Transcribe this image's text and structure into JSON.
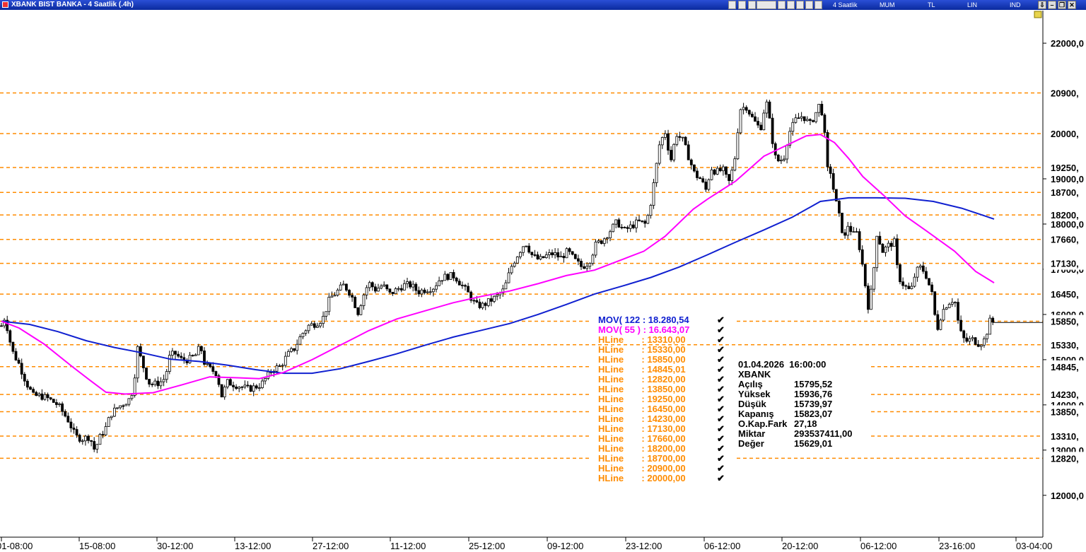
{
  "window": {
    "title": "XBANK BIST BANKA - 4 Saatlik (.4h)",
    "toolbar_labels": [
      "4 Saatlik",
      "MUM",
      "TL",
      "LIN",
      "IND"
    ]
  },
  "chart_data": {
    "type": "candlestick",
    "ylim": [
      11700,
      22400
    ],
    "y_ticks": [
      {
        "value": 22000,
        "label": "22000,0"
      },
      {
        "value": 19000,
        "label": "19000,0"
      },
      {
        "value": 18000,
        "label": "18000,0"
      },
      {
        "value": 17000,
        "label": "17000,0"
      },
      {
        "value": 16000,
        "label": "16000,0"
      },
      {
        "value": 15000,
        "label": "15000,0"
      },
      {
        "value": 14000,
        "label": "14000,0"
      },
      {
        "value": 13000,
        "label": "13000,0"
      },
      {
        "value": 12000,
        "label": "12000,0"
      }
    ],
    "x_ticks": [
      "01-08:00",
      "15-08:00",
      "30-12:00",
      "13-12:00",
      "27-12:00",
      "11-12:00",
      "25-12:00",
      "09-12:00",
      "23-12:00",
      "06-12:00",
      "20-12:00",
      "06-12:00",
      "23-16:00",
      "03-04:00"
    ],
    "hlines": [
      {
        "value": 20900,
        "label": "20900,",
        "style": "long"
      },
      {
        "value": 20000,
        "label": "20000,",
        "style": "long"
      },
      {
        "value": 19250,
        "label": "19250,",
        "style": "long"
      },
      {
        "value": 18700,
        "label": "18700,",
        "style": "long"
      },
      {
        "value": 18200,
        "label": "18200,",
        "style": "long"
      },
      {
        "value": 17660,
        "label": "17660,",
        "style": "long"
      },
      {
        "value": 17130,
        "label": "17130,",
        "style": "long"
      },
      {
        "value": 16450,
        "label": "16450,",
        "style": "long"
      },
      {
        "value": 15850,
        "label": "15850,",
        "style": "long"
      },
      {
        "value": 15330,
        "label": "15330,",
        "style": "long"
      },
      {
        "value": 14845.01,
        "label": "14845,",
        "style": "split"
      },
      {
        "value": 14230,
        "label": "14230,",
        "style": "split"
      },
      {
        "value": 13850,
        "label": "13850,",
        "style": "split"
      },
      {
        "value": 13310,
        "label": "13310,",
        "style": "split"
      },
      {
        "value": 12820,
        "label": "12820,",
        "style": "long"
      }
    ],
    "last_price_line": 15823.07,
    "legend": [
      {
        "name": "MOV( 122 : 18.280,54",
        "color": "#1020d0"
      },
      {
        "name": "MOV( 55 ) : 16.643,07",
        "color": "#ff00ff"
      },
      {
        "name": "HLine       : 13310,00",
        "color": "#ff8c00"
      },
      {
        "name": "HLine       : 15330,00",
        "color": "#ff8c00"
      },
      {
        "name": "HLine       : 15850,00",
        "color": "#ff8c00"
      },
      {
        "name": "HLine       : 14845,01",
        "color": "#ff8c00"
      },
      {
        "name": "HLine       : 12820,00",
        "color": "#ff8c00"
      },
      {
        "name": "HLine       : 13850,00",
        "color": "#ff8c00"
      },
      {
        "name": "HLine       : 19250,00",
        "color": "#ff8c00"
      },
      {
        "name": "HLine       : 16450,00",
        "color": "#ff8c00"
      },
      {
        "name": "HLine       : 14230,00",
        "color": "#ff8c00"
      },
      {
        "name": "HLine       : 17130,00",
        "color": "#ff8c00"
      },
      {
        "name": "HLine       : 17660,00",
        "color": "#ff8c00"
      },
      {
        "name": "HLine       : 18200,00",
        "color": "#ff8c00"
      },
      {
        "name": "HLine       : 18700,00",
        "color": "#ff8c00"
      },
      {
        "name": "HLine       : 20900,00",
        "color": "#ff8c00"
      },
      {
        "name": "HLine       : 20000,00",
        "color": "#ff8c00"
      }
    ],
    "info_panel": {
      "datetime": "01.04.2026  16:00:00",
      "symbol": "XBANK",
      "rows": [
        {
          "label": "Açılış",
          "value": "15795,52"
        },
        {
          "label": "Yüksek",
          "value": "15936,76"
        },
        {
          "label": "Düşük",
          "value": "15739,97"
        },
        {
          "label": "Kapanış",
          "value": "15823,07"
        },
        {
          "label": "O.Kap.Fark",
          "value": "27,18"
        },
        {
          "label": "Miktar",
          "value": "293537411,00"
        },
        {
          "label": "Değer",
          "value": "15629,01"
        }
      ]
    },
    "price_path": [
      [
        0,
        15750
      ],
      [
        5,
        15950
      ],
      [
        15,
        15200
      ],
      [
        25,
        14900
      ],
      [
        35,
        14500
      ],
      [
        45,
        14200
      ],
      [
        55,
        14200
      ],
      [
        65,
        14150
      ],
      [
        80,
        14000
      ],
      [
        95,
        13650
      ],
      [
        105,
        13300
      ],
      [
        115,
        13250
      ],
      [
        125,
        13300
      ],
      [
        132,
        13000
      ],
      [
        140,
        13300
      ],
      [
        148,
        13500
      ],
      [
        155,
        13800
      ],
      [
        165,
        13950
      ],
      [
        175,
        14050
      ],
      [
        183,
        14150
      ],
      [
        188,
        14500
      ],
      [
        192,
        15300
      ],
      [
        200,
        14900
      ],
      [
        208,
        14500
      ],
      [
        215,
        14450
      ],
      [
        225,
        14500
      ],
      [
        232,
        14600
      ],
      [
        238,
        15050
      ],
      [
        245,
        15150
      ],
      [
        255,
        15000
      ],
      [
        265,
        15000
      ],
      [
        275,
        15100
      ],
      [
        282,
        15300
      ],
      [
        288,
        14900
      ],
      [
        295,
        14800
      ],
      [
        305,
        14700
      ],
      [
        312,
        14200
      ],
      [
        320,
        14500
      ],
      [
        330,
        14450
      ],
      [
        340,
        14400
      ],
      [
        350,
        14350
      ],
      [
        360,
        14400
      ],
      [
        368,
        14450
      ],
      [
        375,
        14600
      ],
      [
        385,
        14800
      ],
      [
        395,
        14850
      ],
      [
        405,
        15100
      ],
      [
        415,
        15250
      ],
      [
        425,
        15550
      ],
      [
        435,
        15750
      ],
      [
        445,
        15800
      ],
      [
        455,
        15900
      ],
      [
        465,
        16350
      ],
      [
        475,
        16500
      ],
      [
        485,
        16650
      ],
      [
        495,
        16450
      ],
      [
        505,
        16050
      ],
      [
        512,
        16400
      ],
      [
        520,
        16700
      ],
      [
        530,
        16550
      ],
      [
        540,
        16650
      ],
      [
        550,
        16450
      ],
      [
        560,
        16550
      ],
      [
        570,
        16650
      ],
      [
        580,
        16650
      ],
      [
        590,
        16500
      ],
      [
        600,
        16550
      ],
      [
        612,
        16600
      ],
      [
        622,
        16800
      ],
      [
        632,
        16850
      ],
      [
        642,
        16850
      ],
      [
        652,
        16650
      ],
      [
        662,
        16450
      ],
      [
        672,
        16200
      ],
      [
        682,
        16200
      ],
      [
        692,
        16300
      ],
      [
        702,
        16400
      ],
      [
        712,
        16550
      ],
      [
        722,
        17050
      ],
      [
        732,
        17350
      ],
      [
        742,
        17600
      ],
      [
        752,
        17300
      ],
      [
        762,
        17200
      ],
      [
        772,
        17300
      ],
      [
        782,
        17350
      ],
      [
        792,
        17250
      ],
      [
        802,
        17400
      ],
      [
        812,
        17200
      ],
      [
        822,
        17050
      ],
      [
        832,
        17150
      ],
      [
        842,
        17550
      ],
      [
        852,
        17650
      ],
      [
        862,
        17850
      ],
      [
        872,
        18050
      ],
      [
        882,
        17850
      ],
      [
        892,
        17950
      ],
      [
        902,
        18050
      ],
      [
        912,
        18000
      ],
      [
        918,
        18300
      ],
      [
        925,
        19000
      ],
      [
        932,
        19750
      ],
      [
        940,
        20050
      ],
      [
        948,
        19400
      ],
      [
        956,
        20000
      ],
      [
        965,
        19850
      ],
      [
        973,
        19500
      ],
      [
        982,
        19100
      ],
      [
        990,
        19000
      ],
      [
        998,
        18750
      ],
      [
        1005,
        19250
      ],
      [
        1012,
        19150
      ],
      [
        1022,
        19200
      ],
      [
        1030,
        18900
      ],
      [
        1038,
        19350
      ],
      [
        1046,
        20550
      ],
      [
        1055,
        20600
      ],
      [
        1065,
        20300
      ],
      [
        1075,
        20100
      ],
      [
        1083,
        20750
      ],
      [
        1090,
        20100
      ],
      [
        1095,
        19500
      ],
      [
        1100,
        19400
      ],
      [
        1108,
        19450
      ],
      [
        1115,
        20000
      ],
      [
        1125,
        20300
      ],
      [
        1135,
        20400
      ],
      [
        1145,
        20200
      ],
      [
        1152,
        20400
      ],
      [
        1160,
        20700
      ],
      [
        1165,
        20150
      ],
      [
        1170,
        19200
      ],
      [
        1175,
        19150
      ],
      [
        1180,
        18600
      ],
      [
        1185,
        18300
      ],
      [
        1190,
        17900
      ],
      [
        1195,
        17700
      ],
      [
        1200,
        18050
      ],
      [
        1205,
        17750
      ],
      [
        1212,
        17800
      ],
      [
        1220,
        17050
      ],
      [
        1228,
        16150
      ],
      [
        1234,
        16700
      ],
      [
        1240,
        17800
      ],
      [
        1248,
        17400
      ],
      [
        1258,
        17550
      ],
      [
        1265,
        17600
      ],
      [
        1270,
        16850
      ],
      [
        1278,
        16650
      ],
      [
        1288,
        16500
      ],
      [
        1295,
        16950
      ],
      [
        1303,
        17050
      ],
      [
        1310,
        16850
      ],
      [
        1318,
        16450
      ],
      [
        1325,
        15650
      ],
      [
        1332,
        16050
      ],
      [
        1340,
        16250
      ],
      [
        1350,
        16350
      ],
      [
        1357,
        15650
      ],
      [
        1365,
        15400
      ],
      [
        1375,
        15450
      ],
      [
        1385,
        15350
      ],
      [
        1393,
        15450
      ],
      [
        1400,
        15850
      ],
      [
        1406,
        15823
      ]
    ],
    "mov122_path": [
      [
        0,
        15850
      ],
      [
        40,
        15780
      ],
      [
        80,
        15620
      ],
      [
        120,
        15420
      ],
      [
        160,
        15270
      ],
      [
        200,
        15150
      ],
      [
        240,
        15010
      ],
      [
        280,
        14960
      ],
      [
        320,
        14880
      ],
      [
        360,
        14780
      ],
      [
        400,
        14700
      ],
      [
        440,
        14700
      ],
      [
        480,
        14800
      ],
      [
        520,
        14960
      ],
      [
        560,
        15130
      ],
      [
        600,
        15320
      ],
      [
        640,
        15500
      ],
      [
        680,
        15650
      ],
      [
        720,
        15800
      ],
      [
        760,
        16000
      ],
      [
        800,
        16220
      ],
      [
        840,
        16450
      ],
      [
        880,
        16630
      ],
      [
        920,
        16820
      ],
      [
        960,
        17050
      ],
      [
        1000,
        17320
      ],
      [
        1040,
        17600
      ],
      [
        1080,
        17870
      ],
      [
        1120,
        18150
      ],
      [
        1160,
        18500
      ],
      [
        1200,
        18580
      ],
      [
        1240,
        18580
      ],
      [
        1280,
        18570
      ],
      [
        1320,
        18500
      ],
      [
        1360,
        18350
      ],
      [
        1406,
        18110
      ]
    ],
    "mov55_path": [
      [
        0,
        15850
      ],
      [
        25,
        15700
      ],
      [
        60,
        15350
      ],
      [
        100,
        14850
      ],
      [
        125,
        14550
      ],
      [
        148,
        14280
      ],
      [
        175,
        14240
      ],
      [
        215,
        14270
      ],
      [
        255,
        14440
      ],
      [
        295,
        14620
      ],
      [
        335,
        14600
      ],
      [
        365,
        14580
      ],
      [
        400,
        14720
      ],
      [
        440,
        15000
      ],
      [
        480,
        15320
      ],
      [
        520,
        15640
      ],
      [
        560,
        15900
      ],
      [
        600,
        16080
      ],
      [
        640,
        16260
      ],
      [
        680,
        16400
      ],
      [
        720,
        16520
      ],
      [
        760,
        16680
      ],
      [
        800,
        16860
      ],
      [
        840,
        16980
      ],
      [
        880,
        17220
      ],
      [
        910,
        17400
      ],
      [
        940,
        17730
      ],
      [
        980,
        18330
      ],
      [
        1000,
        18550
      ],
      [
        1040,
        18950
      ],
      [
        1080,
        19500
      ],
      [
        1100,
        19650
      ],
      [
        1120,
        19800
      ],
      [
        1140,
        19950
      ],
      [
        1160,
        19980
      ],
      [
        1180,
        19800
      ],
      [
        1200,
        19450
      ],
      [
        1220,
        19050
      ],
      [
        1250,
        18630
      ],
      [
        1280,
        18180
      ],
      [
        1310,
        17850
      ],
      [
        1350,
        17400
      ],
      [
        1380,
        16950
      ],
      [
        1406,
        16700
      ]
    ]
  }
}
